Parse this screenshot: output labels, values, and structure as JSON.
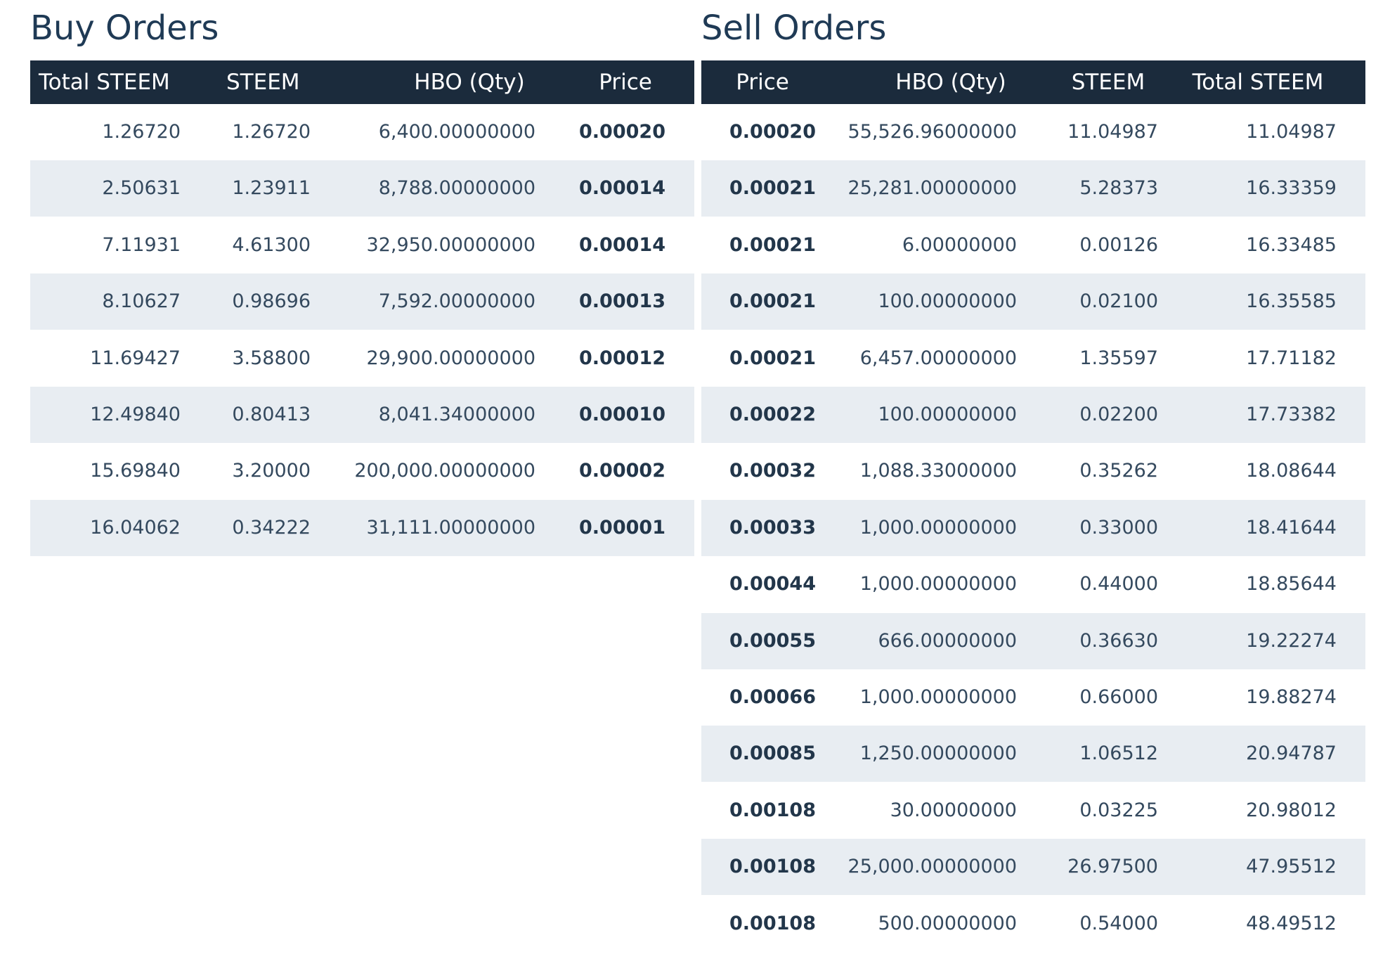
{
  "buy_orders": {
    "title": "Buy Orders",
    "columns": [
      "Total STEEM",
      "STEEM",
      "HBO (Qty)",
      "Price"
    ],
    "rows": [
      [
        "1.26720",
        "1.26720",
        "6,400.00000000",
        "0.00020"
      ],
      [
        "2.50631",
        "1.23911",
        "8,788.00000000",
        "0.00014"
      ],
      [
        "7.11931",
        "4.61300",
        "32,950.00000000",
        "0.00014"
      ],
      [
        "8.10627",
        "0.98696",
        "7,592.00000000",
        "0.00013"
      ],
      [
        "11.69427",
        "3.58800",
        "29,900.00000000",
        "0.00012"
      ],
      [
        "12.49840",
        "0.80413",
        "8,041.34000000",
        "0.00010"
      ],
      [
        "15.69840",
        "3.20000",
        "200,000.00000000",
        "0.00002"
      ],
      [
        "16.04062",
        "0.34222",
        "31,111.00000000",
        "0.00001"
      ]
    ]
  },
  "sell_orders": {
    "title": "Sell Orders",
    "columns": [
      "Price",
      "HBO (Qty)",
      "STEEM",
      "Total STEEM"
    ],
    "rows": [
      [
        "0.00020",
        "55,526.96000000",
        "11.04987",
        "11.04987"
      ],
      [
        "0.00021",
        "25,281.00000000",
        "5.28373",
        "16.33359"
      ],
      [
        "0.00021",
        "6.00000000",
        "0.00126",
        "16.33485"
      ],
      [
        "0.00021",
        "100.00000000",
        "0.02100",
        "16.35585"
      ],
      [
        "0.00021",
        "6,457.00000000",
        "1.35597",
        "17.71182"
      ],
      [
        "0.00022",
        "100.00000000",
        "0.02200",
        "17.73382"
      ],
      [
        "0.00032",
        "1,088.33000000",
        "0.35262",
        "18.08644"
      ],
      [
        "0.00033",
        "1,000.00000000",
        "0.33000",
        "18.41644"
      ],
      [
        "0.00044",
        "1,000.00000000",
        "0.44000",
        "18.85644"
      ],
      [
        "0.00055",
        "666.00000000",
        "0.36630",
        "19.22274"
      ],
      [
        "0.00066",
        "1,000.00000000",
        "0.66000",
        "19.88274"
      ],
      [
        "0.00085",
        "1,250.00000000",
        "1.06512",
        "20.94787"
      ],
      [
        "0.00108",
        "30.00000000",
        "0.03225",
        "20.98012"
      ],
      [
        "0.00108",
        "25,000.00000000",
        "26.97500",
        "47.95512"
      ],
      [
        "0.00108",
        "500.00000000",
        "0.54000",
        "48.49512"
      ]
    ]
  }
}
